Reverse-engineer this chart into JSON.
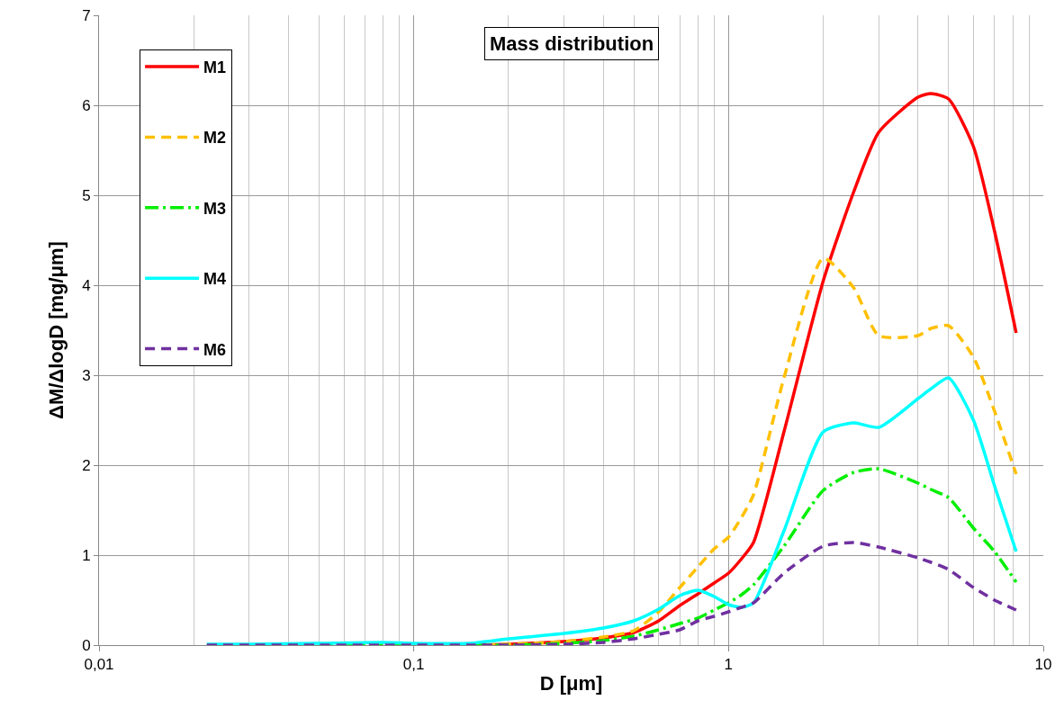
{
  "chart_data": {
    "type": "line",
    "title": "Mass distribution",
    "xlabel": "D [μm]",
    "ylabel": "ΔM/ΔlogD [mg/μm]",
    "log": "x",
    "grid": true,
    "legend": "top left",
    "marker": "none",
    "x": [
      0.022,
      0.03,
      0.05,
      0.08,
      0.1,
      0.15,
      0.2,
      0.3,
      0.4,
      0.5,
      0.6,
      0.7,
      0.8,
      0.9,
      1,
      1.1,
      1.2,
      1.5,
      2,
      2.5,
      3,
      4,
      4.4,
      5,
      6,
      7,
      8.2
    ],
    "xlim": [
      0.01,
      10
    ],
    "xticks": [
      {
        "value": 0.01,
        "label": "0,01"
      },
      {
        "value": 0.1,
        "label": "0,1"
      },
      1,
      10
    ],
    "ylim": [
      0,
      7
    ],
    "yticks": [
      0,
      1,
      2,
      3,
      4,
      5,
      6,
      7
    ],
    "series": [
      {
        "name": "M1",
        "color": "#ff0000",
        "line_style": "solid",
        "values": [
          null,
          null,
          null,
          null,
          null,
          0,
          0.01,
          0.04,
          0.08,
          0.14,
          0.27,
          0.44,
          0.57,
          0.69,
          0.8,
          0.96,
          1.14,
          2.37,
          4.05,
          5.04,
          5.7,
          6.09,
          6.13,
          6.07,
          5.54,
          4.6,
          3.47
        ]
      },
      {
        "name": "M2",
        "color": "#ffc000",
        "line_style": "dashed",
        "values": [
          null,
          null,
          null,
          null,
          null,
          0,
          0.01,
          0.04,
          0.09,
          0.16,
          0.37,
          0.64,
          0.87,
          1.07,
          1.2,
          1.42,
          1.67,
          2.97,
          4.3,
          3.97,
          3.44,
          3.44,
          3.52,
          3.55,
          3.2,
          2.6,
          1.9
        ]
      },
      {
        "name": "M3",
        "color": "#00ee00",
        "line_style": "dashdot",
        "values": [
          null,
          null,
          0,
          0,
          0,
          0,
          0,
          0.02,
          0.05,
          0.1,
          0.17,
          0.24,
          0.3,
          0.39,
          0.47,
          0.56,
          0.67,
          1.1,
          1.72,
          1.92,
          1.96,
          1.8,
          1.73,
          1.64,
          1.3,
          1.04,
          0.7
        ]
      },
      {
        "name": "M4",
        "color": "#00ffff",
        "line_style": "solid",
        "values": [
          0.01,
          0.01,
          0.02,
          0.03,
          0.02,
          0.02,
          0.07,
          0.13,
          0.19,
          0.27,
          0.4,
          0.55,
          0.61,
          0.54,
          0.45,
          0.42,
          0.47,
          1.27,
          2.37,
          2.47,
          2.42,
          2.74,
          2.85,
          2.97,
          2.5,
          1.77,
          1.04
        ]
      },
      {
        "name": "M6",
        "color": "#7030a0",
        "line_style": "dashed",
        "values": [
          0,
          0,
          0,
          0,
          0,
          0,
          0,
          0.01,
          0.03,
          0.07,
          0.12,
          0.17,
          0.27,
          0.32,
          0.37,
          0.42,
          0.47,
          0.8,
          1.1,
          1.14,
          1.09,
          0.97,
          0.92,
          0.84,
          0.64,
          0.5,
          0.39
        ]
      }
    ]
  }
}
